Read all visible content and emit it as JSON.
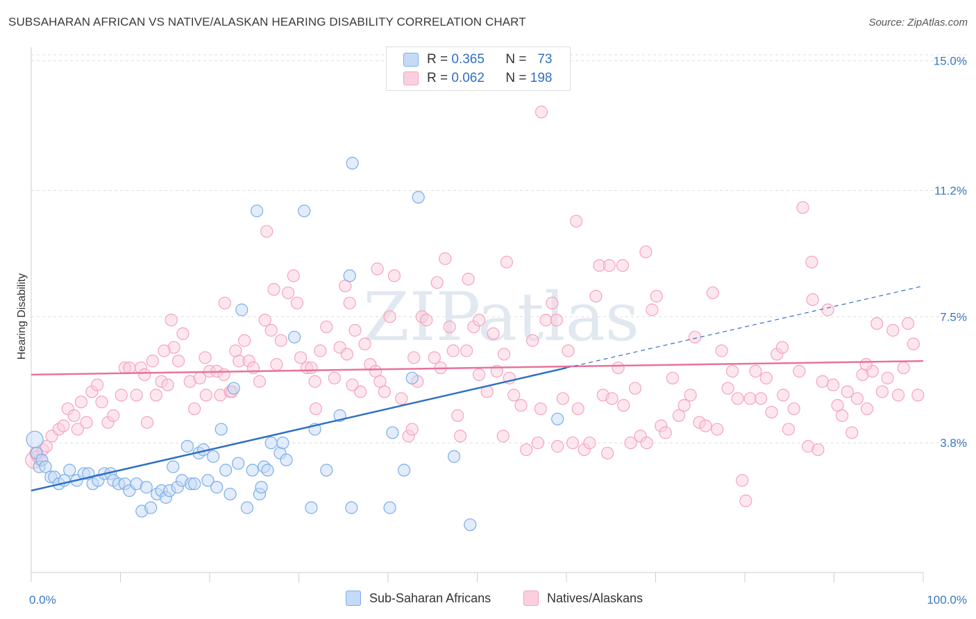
{
  "title": "SUBSAHARAN AFRICAN VS NATIVE/ALASKAN HEARING DISABILITY CORRELATION CHART",
  "source": "Source: ZipAtlas.com",
  "watermark": "ZIPatlas",
  "legend": {
    "r_label": "R =",
    "n_label": "N =",
    "rows": [
      {
        "r": "0.365",
        "n": "73"
      },
      {
        "r": "0.062",
        "n": "198"
      }
    ]
  },
  "chart_data": {
    "type": "scatter",
    "xlabel": "",
    "ylabel": "Hearing Disability",
    "xlim": [
      0,
      100
    ],
    "ylim": [
      0,
      15.4
    ],
    "x_tick_labels": [
      {
        "value": 0,
        "label": "0.0%"
      },
      {
        "value": 100,
        "label": "100.0%"
      }
    ],
    "y_ticks": [
      {
        "value": 3.8,
        "label": "3.8%"
      },
      {
        "value": 7.5,
        "label": "7.5%"
      },
      {
        "value": 11.2,
        "label": "11.2%"
      },
      {
        "value": 15.0,
        "label": "15.0%"
      }
    ],
    "grid": "horizontal dashed",
    "legend_position": "top-center",
    "series": [
      {
        "name": "Sub-Saharan Africans",
        "color": "#7aaee8",
        "line_color": "#2f6fc4",
        "r": 0.365,
        "n": 73,
        "trend": {
          "x0": 0,
          "y0": 2.4,
          "x1": 60,
          "y1": 6.0,
          "x_dash_end": 100,
          "y_dash_end": 8.4
        },
        "points": [
          [
            0.4,
            3.9
          ],
          [
            0.6,
            3.5
          ],
          [
            0.9,
            3.1
          ],
          [
            1.2,
            3.3
          ],
          [
            1.6,
            3.1
          ],
          [
            2.2,
            2.8
          ],
          [
            2.6,
            2.8
          ],
          [
            3.1,
            2.6
          ],
          [
            3.7,
            2.7
          ],
          [
            4.3,
            3.0
          ],
          [
            5.1,
            2.7
          ],
          [
            5.9,
            2.9
          ],
          [
            6.4,
            2.9
          ],
          [
            6.9,
            2.6
          ],
          [
            7.5,
            2.7
          ],
          [
            8.2,
            2.9
          ],
          [
            8.9,
            2.9
          ],
          [
            9.2,
            2.7
          ],
          [
            9.8,
            2.6
          ],
          [
            10.5,
            2.6
          ],
          [
            11.0,
            2.4
          ],
          [
            11.8,
            2.6
          ],
          [
            12.4,
            1.8
          ],
          [
            12.9,
            2.5
          ],
          [
            13.4,
            1.9
          ],
          [
            14.1,
            2.3
          ],
          [
            14.6,
            2.4
          ],
          [
            15.1,
            2.2
          ],
          [
            15.5,
            2.4
          ],
          [
            15.9,
            3.1
          ],
          [
            16.4,
            2.5
          ],
          [
            16.9,
            2.7
          ],
          [
            17.5,
            3.7
          ],
          [
            17.9,
            2.6
          ],
          [
            18.3,
            2.6
          ],
          [
            18.8,
            3.5
          ],
          [
            19.3,
            3.6
          ],
          [
            19.8,
            2.7
          ],
          [
            20.4,
            3.4
          ],
          [
            20.8,
            2.5
          ],
          [
            21.3,
            4.2
          ],
          [
            21.8,
            3.0
          ],
          [
            22.3,
            2.3
          ],
          [
            22.7,
            5.4
          ],
          [
            23.2,
            3.2
          ],
          [
            23.6,
            7.7
          ],
          [
            24.2,
            1.9
          ],
          [
            24.8,
            3.0
          ],
          [
            25.3,
            10.6
          ],
          [
            25.6,
            2.3
          ],
          [
            25.8,
            2.5
          ],
          [
            26.1,
            3.1
          ],
          [
            26.5,
            3.0
          ],
          [
            26.9,
            3.8
          ],
          [
            27.9,
            3.5
          ],
          [
            28.2,
            3.8
          ],
          [
            28.6,
            3.3
          ],
          [
            29.5,
            6.9
          ],
          [
            30.6,
            10.6
          ],
          [
            31.4,
            1.9
          ],
          [
            31.8,
            4.2
          ],
          [
            33.1,
            3.0
          ],
          [
            34.6,
            4.6
          ],
          [
            35.7,
            8.7
          ],
          [
            35.9,
            1.9
          ],
          [
            36.0,
            12.0
          ],
          [
            40.2,
            1.9
          ],
          [
            40.5,
            4.1
          ],
          [
            41.8,
            3.0
          ],
          [
            42.7,
            5.7
          ],
          [
            43.4,
            11.0
          ],
          [
            47.4,
            3.4
          ],
          [
            49.2,
            1.4
          ],
          [
            59.0,
            4.5
          ]
        ]
      },
      {
        "name": "Natives/Alaskans",
        "color": "#f5a3bd",
        "line_color": "#e8729a",
        "r": 0.062,
        "n": 198,
        "trend": {
          "x0": 0,
          "y0": 5.8,
          "x1": 100,
          "y1": 6.2
        },
        "points": [
          [
            0.3,
            3.3
          ],
          [
            0.5,
            3.5
          ],
          [
            0.7,
            3.4
          ],
          [
            1.0,
            3.3
          ],
          [
            1.3,
            3.6
          ],
          [
            1.7,
            3.7
          ],
          [
            2.3,
            4.0
          ],
          [
            3.1,
            4.2
          ],
          [
            3.6,
            4.3
          ],
          [
            4.1,
            4.8
          ],
          [
            4.8,
            4.6
          ],
          [
            5.2,
            4.2
          ],
          [
            5.6,
            5.0
          ],
          [
            6.2,
            4.4
          ],
          [
            6.8,
            5.3
          ],
          [
            7.4,
            5.5
          ],
          [
            7.9,
            5.0
          ],
          [
            8.6,
            4.4
          ],
          [
            9.2,
            4.6
          ],
          [
            10.1,
            5.2
          ],
          [
            10.5,
            6.0
          ],
          [
            11.0,
            6.0
          ],
          [
            11.8,
            5.2
          ],
          [
            12.3,
            6.0
          ],
          [
            12.7,
            5.8
          ],
          [
            13.6,
            6.2
          ],
          [
            14.0,
            5.2
          ],
          [
            14.6,
            5.6
          ],
          [
            15.3,
            5.5
          ],
          [
            16.0,
            6.6
          ],
          [
            16.5,
            6.2
          ],
          [
            17.0,
            7.0
          ],
          [
            17.8,
            5.6
          ],
          [
            18.3,
            4.8
          ],
          [
            18.9,
            5.7
          ],
          [
            19.5,
            6.3
          ],
          [
            20.0,
            5.9
          ],
          [
            20.8,
            5.9
          ],
          [
            21.2,
            5.2
          ],
          [
            21.6,
            5.8
          ],
          [
            22.3,
            5.3
          ],
          [
            22.9,
            6.5
          ],
          [
            23.3,
            6.2
          ],
          [
            23.9,
            6.8
          ],
          [
            24.4,
            6.2
          ],
          [
            24.9,
            6.0
          ],
          [
            25.6,
            5.6
          ],
          [
            26.2,
            7.4
          ],
          [
            26.9,
            7.1
          ],
          [
            27.5,
            6.1
          ],
          [
            28.0,
            6.8
          ],
          [
            28.8,
            8.2
          ],
          [
            29.4,
            8.7
          ],
          [
            29.8,
            7.9
          ],
          [
            30.2,
            6.3
          ],
          [
            30.9,
            6.0
          ],
          [
            31.4,
            6.0
          ],
          [
            31.8,
            5.6
          ],
          [
            32.4,
            6.5
          ],
          [
            33.1,
            7.2
          ],
          [
            34.0,
            5.7
          ],
          [
            34.6,
            6.6
          ],
          [
            35.2,
            8.4
          ],
          [
            35.7,
            7.9
          ],
          [
            36.3,
            7.1
          ],
          [
            36.9,
            5.3
          ],
          [
            37.4,
            6.7
          ],
          [
            38.0,
            6.1
          ],
          [
            38.6,
            5.9
          ],
          [
            39.1,
            5.6
          ],
          [
            39.6,
            5.3
          ],
          [
            40.2,
            7.5
          ],
          [
            40.7,
            8.7
          ],
          [
            41.5,
            5.1
          ],
          [
            42.3,
            4.0
          ],
          [
            42.7,
            4.2
          ],
          [
            43.3,
            5.6
          ],
          [
            43.8,
            7.5
          ],
          [
            44.3,
            7.4
          ],
          [
            45.2,
            6.3
          ],
          [
            45.9,
            6.0
          ],
          [
            46.4,
            9.2
          ],
          [
            46.9,
            7.2
          ],
          [
            47.3,
            6.5
          ],
          [
            47.8,
            4.6
          ],
          [
            48.1,
            4.0
          ],
          [
            48.8,
            6.5
          ],
          [
            49.0,
            8.6
          ],
          [
            49.6,
            7.2
          ],
          [
            50.2,
            7.4
          ],
          [
            51.1,
            5.3
          ],
          [
            51.8,
            7.0
          ],
          [
            52.2,
            5.9
          ],
          [
            53.0,
            6.4
          ],
          [
            53.6,
            5.7
          ],
          [
            54.1,
            5.2
          ],
          [
            54.9,
            4.9
          ],
          [
            55.5,
            3.6
          ],
          [
            56.2,
            6.8
          ],
          [
            56.8,
            3.8
          ],
          [
            57.1,
            4.8
          ],
          [
            57.7,
            7.4
          ],
          [
            58.4,
            7.9
          ],
          [
            59.0,
            3.7
          ],
          [
            59.6,
            5.1
          ],
          [
            60.2,
            6.5
          ],
          [
            60.7,
            3.8
          ],
          [
            61.3,
            4.8
          ],
          [
            62.0,
            3.6
          ],
          [
            62.6,
            3.8
          ],
          [
            63.3,
            8.1
          ],
          [
            63.7,
            9.0
          ],
          [
            64.1,
            5.2
          ],
          [
            64.6,
            3.5
          ],
          [
            65.1,
            5.1
          ],
          [
            65.8,
            6.0
          ],
          [
            66.4,
            4.9
          ],
          [
            67.2,
            3.8
          ],
          [
            67.7,
            5.4
          ],
          [
            68.3,
            4.0
          ],
          [
            69.0,
            3.8
          ],
          [
            69.6,
            7.7
          ],
          [
            70.1,
            8.1
          ],
          [
            70.6,
            4.3
          ],
          [
            71.1,
            4.1
          ],
          [
            71.9,
            5.7
          ],
          [
            72.6,
            4.6
          ],
          [
            73.2,
            4.9
          ],
          [
            73.9,
            5.2
          ],
          [
            74.4,
            6.9
          ],
          [
            74.9,
            4.4
          ],
          [
            75.6,
            4.3
          ],
          [
            76.4,
            8.2
          ],
          [
            76.9,
            4.2
          ],
          [
            77.4,
            6.5
          ],
          [
            78.1,
            5.4
          ],
          [
            78.6,
            5.9
          ],
          [
            79.2,
            5.1
          ],
          [
            79.7,
            2.7
          ],
          [
            80.1,
            2.1
          ],
          [
            80.6,
            5.1
          ],
          [
            81.2,
            5.9
          ],
          [
            81.8,
            5.1
          ],
          [
            82.4,
            5.7
          ],
          [
            83.0,
            4.7
          ],
          [
            83.6,
            6.4
          ],
          [
            84.3,
            5.2
          ],
          [
            84.9,
            4.2
          ],
          [
            85.5,
            4.8
          ],
          [
            86.1,
            5.9
          ],
          [
            86.5,
            10.7
          ],
          [
            87.1,
            3.7
          ],
          [
            87.5,
            9.1
          ],
          [
            88.2,
            3.6
          ],
          [
            88.7,
            5.6
          ],
          [
            89.3,
            7.7
          ],
          [
            89.9,
            5.5
          ],
          [
            90.4,
            4.9
          ],
          [
            90.9,
            4.6
          ],
          [
            91.5,
            5.3
          ],
          [
            92.0,
            4.1
          ],
          [
            92.6,
            5.1
          ],
          [
            93.2,
            5.8
          ],
          [
            93.7,
            4.8
          ],
          [
            94.3,
            5.9
          ],
          [
            94.8,
            7.3
          ],
          [
            95.4,
            5.3
          ],
          [
            96.0,
            5.7
          ],
          [
            96.6,
            7.1
          ],
          [
            97.2,
            5.2
          ],
          [
            97.8,
            6.0
          ],
          [
            98.3,
            7.3
          ],
          [
            98.9,
            6.7
          ],
          [
            99.4,
            5.2
          ],
          [
            57.2,
            13.5
          ],
          [
            61.1,
            10.3
          ],
          [
            53.3,
            9.1
          ],
          [
            52.9,
            4.0
          ],
          [
            58.9,
            7.4
          ],
          [
            42.9,
            6.3
          ],
          [
            38.8,
            8.9
          ],
          [
            36.0,
            5.5
          ],
          [
            31.9,
            4.8
          ],
          [
            27.2,
            8.3
          ],
          [
            26.4,
            10.0
          ],
          [
            21.7,
            7.9
          ],
          [
            19.6,
            5.2
          ],
          [
            15.7,
            7.4
          ],
          [
            14.9,
            6.5
          ],
          [
            13.0,
            4.4
          ],
          [
            22.5,
            5.3
          ],
          [
            45.5,
            8.5
          ],
          [
            66.3,
            9.0
          ],
          [
            68.9,
            9.4
          ],
          [
            84.2,
            6.6
          ],
          [
            87.6,
            8.0
          ],
          [
            93.6,
            6.1
          ],
          [
            50.2,
            5.8
          ],
          [
            64.8,
            9.0
          ],
          [
            35.4,
            6.4
          ]
        ]
      }
    ]
  }
}
